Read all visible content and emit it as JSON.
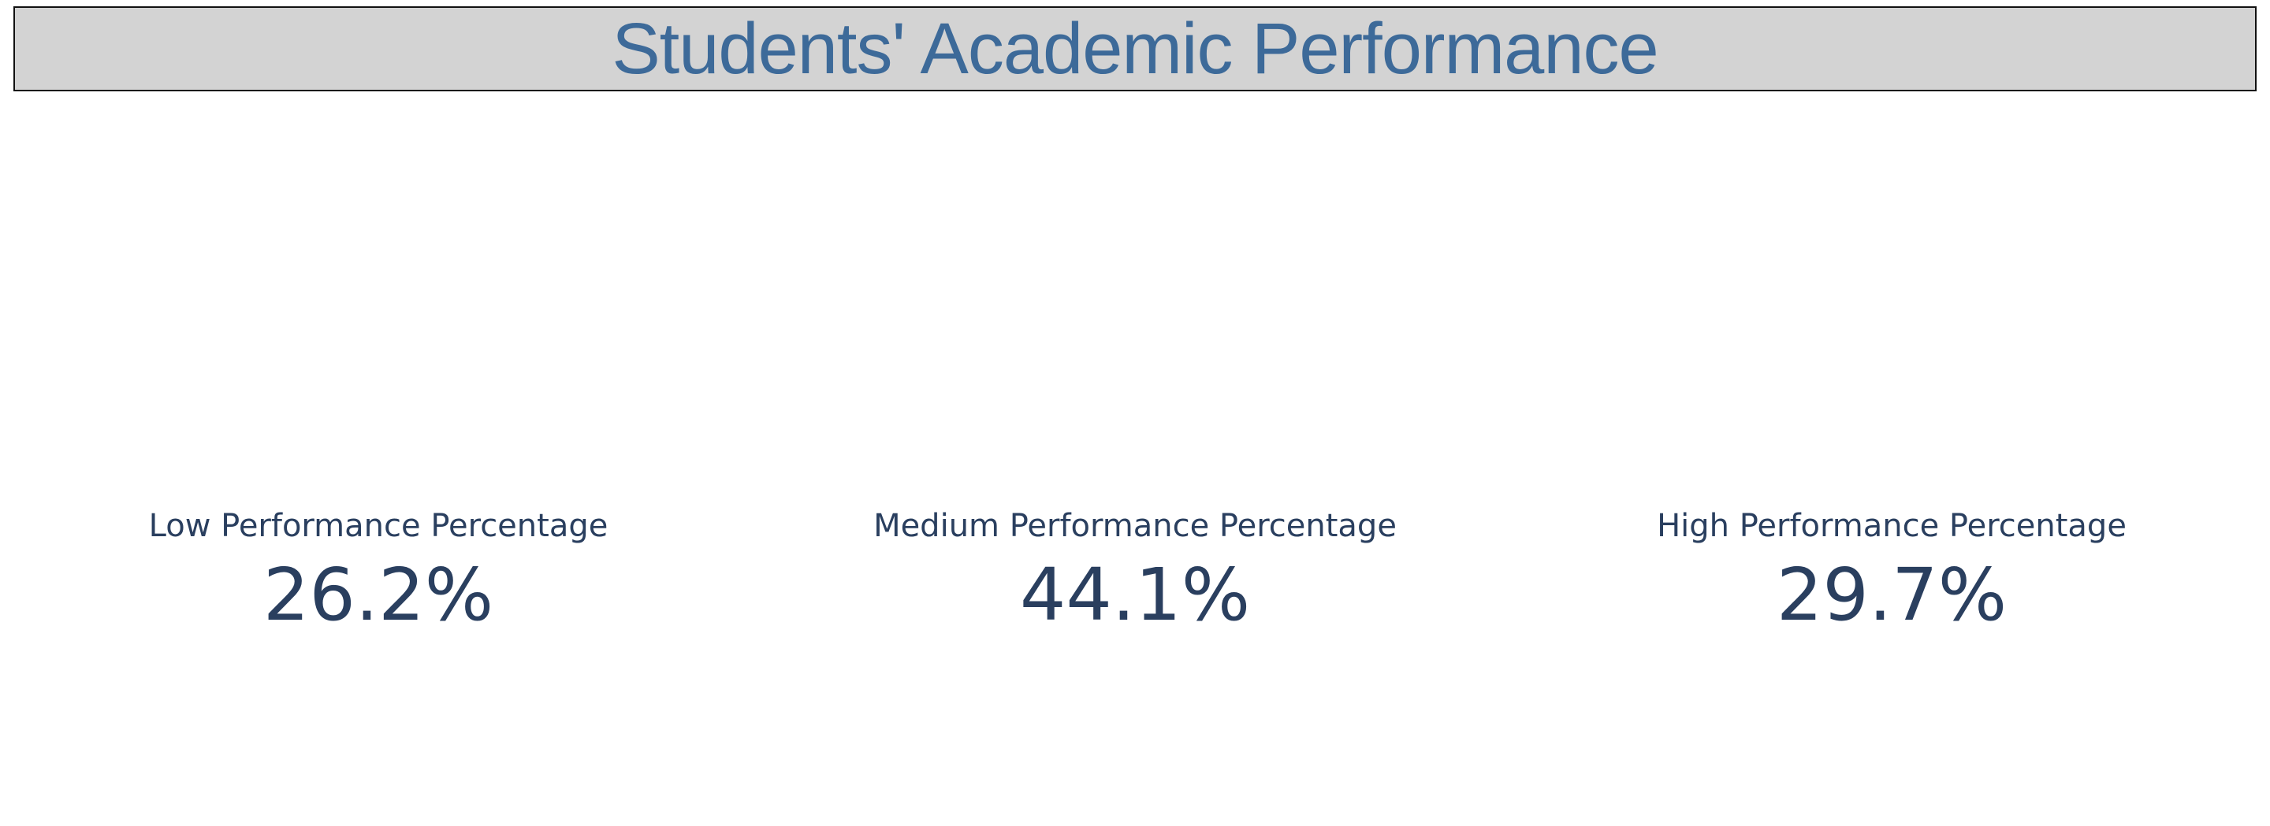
{
  "header": {
    "title": "Students' Academic Performance"
  },
  "colors": {
    "title": "#3d6a99",
    "header_background": "#d3d3d3",
    "header_border": "#111111",
    "indicator_text": "#2a3f5f"
  },
  "chart_data": {
    "type": "indicator",
    "title": "Students' Academic Performance",
    "indicators": [
      {
        "label": "Low Performance Percentage",
        "value": 26.2,
        "display": "26.2%"
      },
      {
        "label": "Medium Performance Percentage",
        "value": 44.1,
        "display": "44.1%"
      },
      {
        "label": "High Performance Percentage",
        "value": 29.7,
        "display": "29.7%"
      }
    ]
  }
}
